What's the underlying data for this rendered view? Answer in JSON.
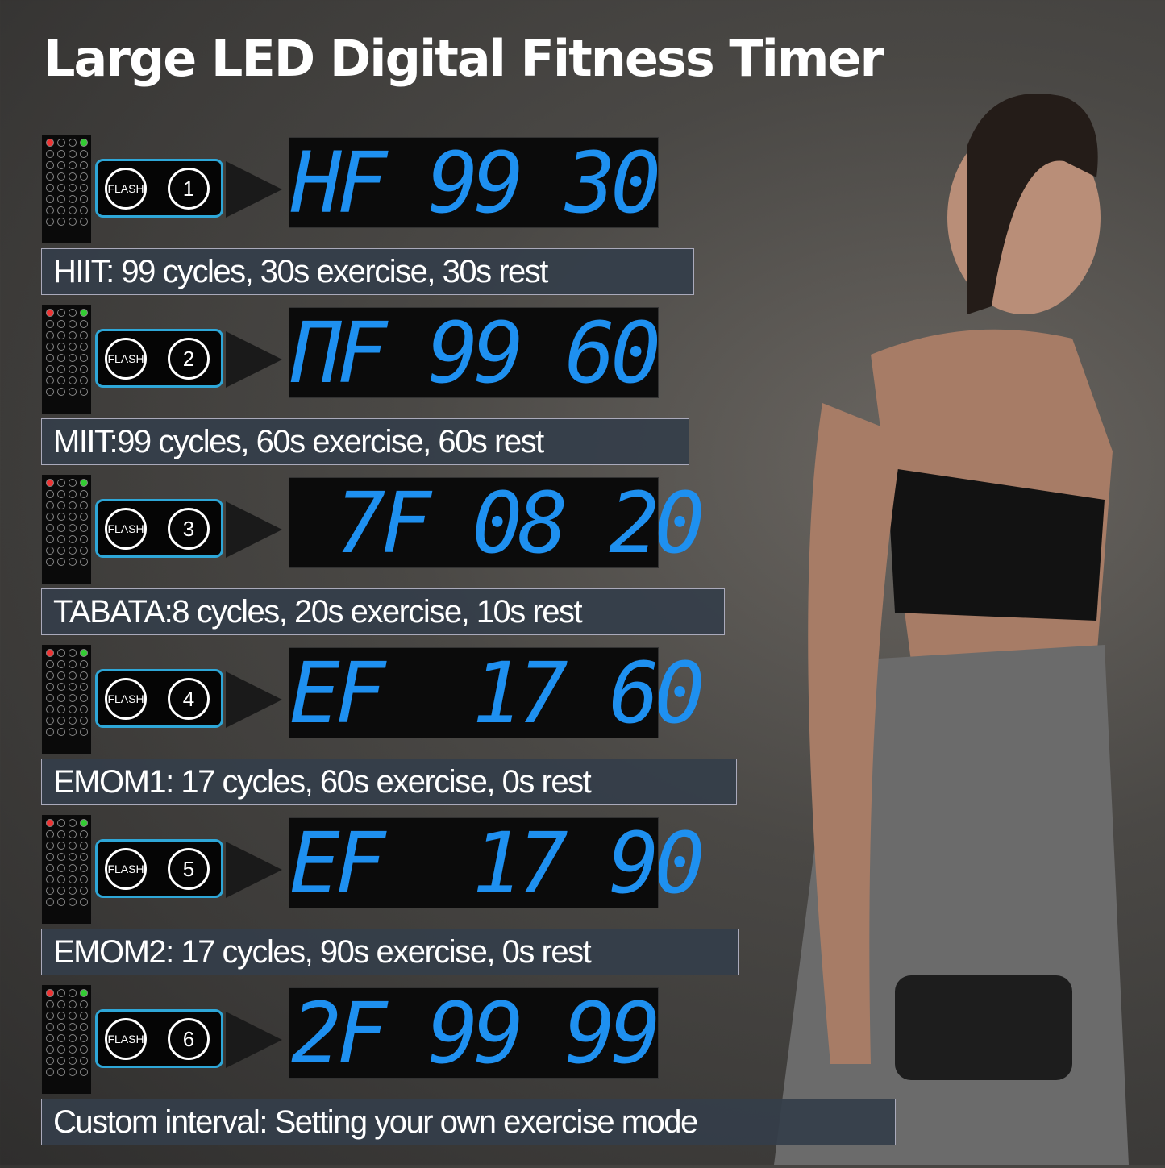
{
  "title": "Large LED Digital Fitness Timer",
  "flash_label": "FLASH",
  "colors": {
    "led": "#1e90f0",
    "pill_border": "#2ea7d8",
    "caption_bg": "#343e4a"
  },
  "modes": [
    {
      "button": "1",
      "display": "HF 99 30",
      "caption": "HIIT: 99 cycles, 30s exercise, 30s rest"
    },
    {
      "button": "2",
      "display": "ΠF 99 60",
      "caption": "MIIT:99 cycles, 60s exercise, 60s rest"
    },
    {
      "button": "3",
      "display": " 7F 08 20",
      "caption": "TABATA:8 cycles, 20s exercise, 10s rest"
    },
    {
      "button": "4",
      "display": "EF  17 60",
      "caption": "EMOM1: 17 cycles, 60s exercise, 0s rest"
    },
    {
      "button": "5",
      "display": "EF  17 90",
      "caption": "EMOM2: 17 cycles, 90s exercise, 0s rest"
    },
    {
      "button": "6",
      "display": "2F 99 99",
      "caption": "Custom interval: Setting your own exercise mode"
    }
  ]
}
